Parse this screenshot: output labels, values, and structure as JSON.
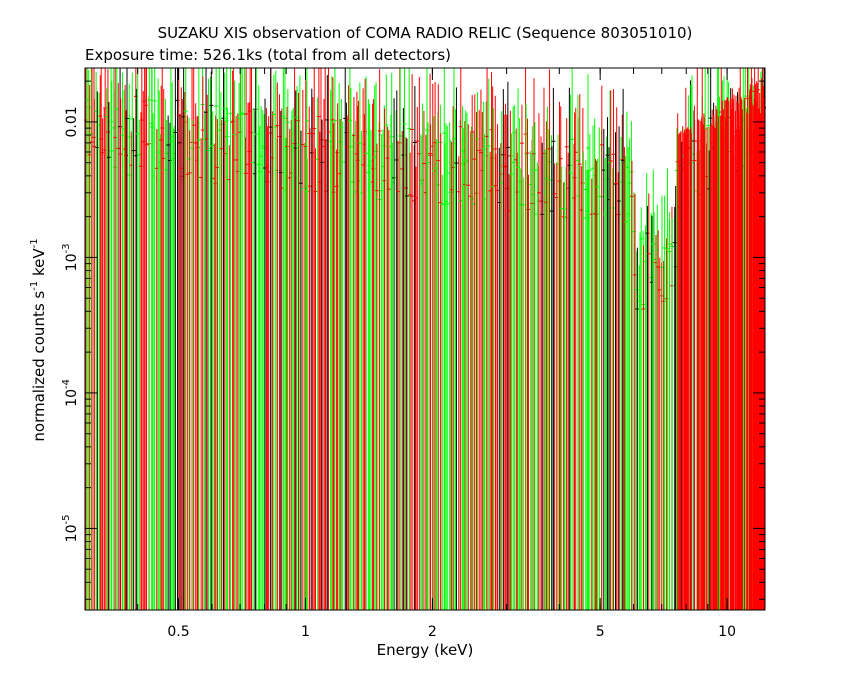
{
  "chart_data": {
    "type": "scatter",
    "title": "SUZAKU XIS observation of COMA RADIO RELIC (Sequence 803051010)",
    "subtitle": "Exposure time: 526.1ks (total from all detectors)",
    "xlabel": "Energy (keV)",
    "ylabel": "normalized counts s",
    "ylabel_sup1": "-1",
    "ylabel_mid": " keV",
    "ylabel_sup2": "-1",
    "x_scale": "log",
    "y_scale": "log",
    "xlim": [
      0.3,
      12.3
    ],
    "ylim": [
      2.5e-06,
      0.025
    ],
    "x_ticks": [
      {
        "value": 0.5,
        "label": "0.5"
      },
      {
        "value": 1,
        "label": "1"
      },
      {
        "value": 2,
        "label": "2"
      },
      {
        "value": 5,
        "label": "5"
      },
      {
        "value": 10,
        "label": "10"
      }
    ],
    "y_ticks": [
      {
        "value": 1e-05,
        "base": "10",
        "exp": "-5"
      },
      {
        "value": 0.0001,
        "base": "10",
        "exp": "-4"
      },
      {
        "value": 0.001,
        "base": "10",
        "exp": "-3"
      },
      {
        "value": 0.01,
        "base": "0.01",
        "exp": ""
      }
    ],
    "grid": false,
    "series": [
      {
        "color": "#000000"
      },
      {
        "color": "#ff0000"
      },
      {
        "color": "#00ff00"
      }
    ]
  }
}
